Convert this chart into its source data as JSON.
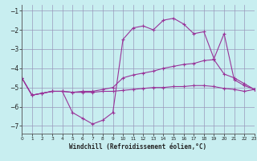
{
  "title": "",
  "xlabel": "Windchill (Refroidissement éolien,°C)",
  "ylabel": "",
  "background_color": "#c8eef0",
  "line_color": "#993399",
  "grid_color": "#9999bb",
  "ylim": [
    -7.4,
    -0.7
  ],
  "xlim": [
    0,
    23
  ],
  "yticks": [
    -7,
    -6,
    -5,
    -4,
    -3,
    -2,
    -1
  ],
  "xticks": [
    0,
    1,
    2,
    3,
    4,
    5,
    6,
    7,
    8,
    9,
    10,
    11,
    12,
    13,
    14,
    15,
    16,
    17,
    18,
    19,
    20,
    21,
    22,
    23
  ],
  "hours": [
    0,
    1,
    2,
    3,
    4,
    5,
    6,
    7,
    8,
    9,
    10,
    11,
    12,
    13,
    14,
    15,
    16,
    17,
    18,
    19,
    20,
    21,
    22,
    23
  ],
  "line1": [
    -4.5,
    -5.4,
    -5.3,
    -5.2,
    -5.2,
    -6.3,
    -6.6,
    -6.9,
    -6.7,
    -6.3,
    -2.5,
    -1.9,
    -1.8,
    -2.0,
    -1.5,
    -1.4,
    -1.7,
    -2.2,
    -2.1,
    -3.5,
    -2.2,
    -4.6,
    -4.9,
    -5.1
  ],
  "line2": [
    -4.5,
    -5.4,
    -5.3,
    -5.2,
    -5.2,
    -5.25,
    -5.2,
    -5.2,
    -5.1,
    -5.0,
    -4.5,
    -4.35,
    -4.25,
    -4.15,
    -4.0,
    -3.9,
    -3.8,
    -3.75,
    -3.6,
    -3.55,
    -4.3,
    -4.5,
    -4.8,
    -5.1
  ],
  "line3": [
    -4.5,
    -5.4,
    -5.3,
    -5.2,
    -5.2,
    -5.25,
    -5.25,
    -5.25,
    -5.2,
    -5.2,
    -5.15,
    -5.1,
    -5.05,
    -5.0,
    -5.0,
    -4.95,
    -4.95,
    -4.9,
    -4.9,
    -4.95,
    -5.05,
    -5.1,
    -5.2,
    -5.1
  ]
}
